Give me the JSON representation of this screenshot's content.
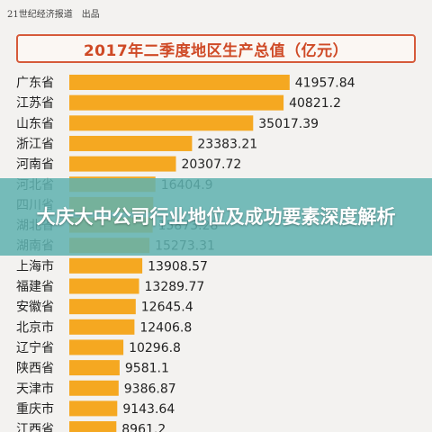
{
  "source": "21世纪经济报道　出品",
  "banner": {
    "text": "大庆大中公司行业地位及成功要素深度解析"
  },
  "colors": {
    "bar": "#f5a821",
    "title": "#cf4a26",
    "banner": "#60b2b0",
    "label": "#222222"
  },
  "chart_data": {
    "type": "bar",
    "orientation": "horizontal",
    "title": "2017年二季度地区生产总值（亿元）",
    "xlim": [
      0,
      42000
    ],
    "grid": false,
    "categories": [
      "广东省",
      "江苏省",
      "山东省",
      "浙江省",
      "河南省",
      "河北省",
      "四川省",
      "湖北省",
      "湖南省",
      "上海市",
      "福建省",
      "安徽省",
      "北京市",
      "辽宁省",
      "陕西省",
      "天津市",
      "重庆市",
      "江西省"
    ],
    "values": [
      41957.84,
      40821.2,
      35017.39,
      23383.21,
      20307.72,
      16404.9,
      16000,
      15873.28,
      15273.31,
      13908.57,
      13289.77,
      12645.4,
      12406.8,
      10296.8,
      9581.1,
      9386.87,
      9143.64,
      8961.2
    ],
    "labels": [
      "41957.84",
      "40821.2",
      "35017.39",
      "23383.21",
      "20307.72",
      "16404.9",
      "",
      "15873.28",
      "15273.31",
      "13908.57",
      "13289.77",
      "12645.4",
      "12406.8",
      "10296.8",
      "9581.1",
      "9386.87",
      "9143.64",
      "8961.2"
    ]
  }
}
